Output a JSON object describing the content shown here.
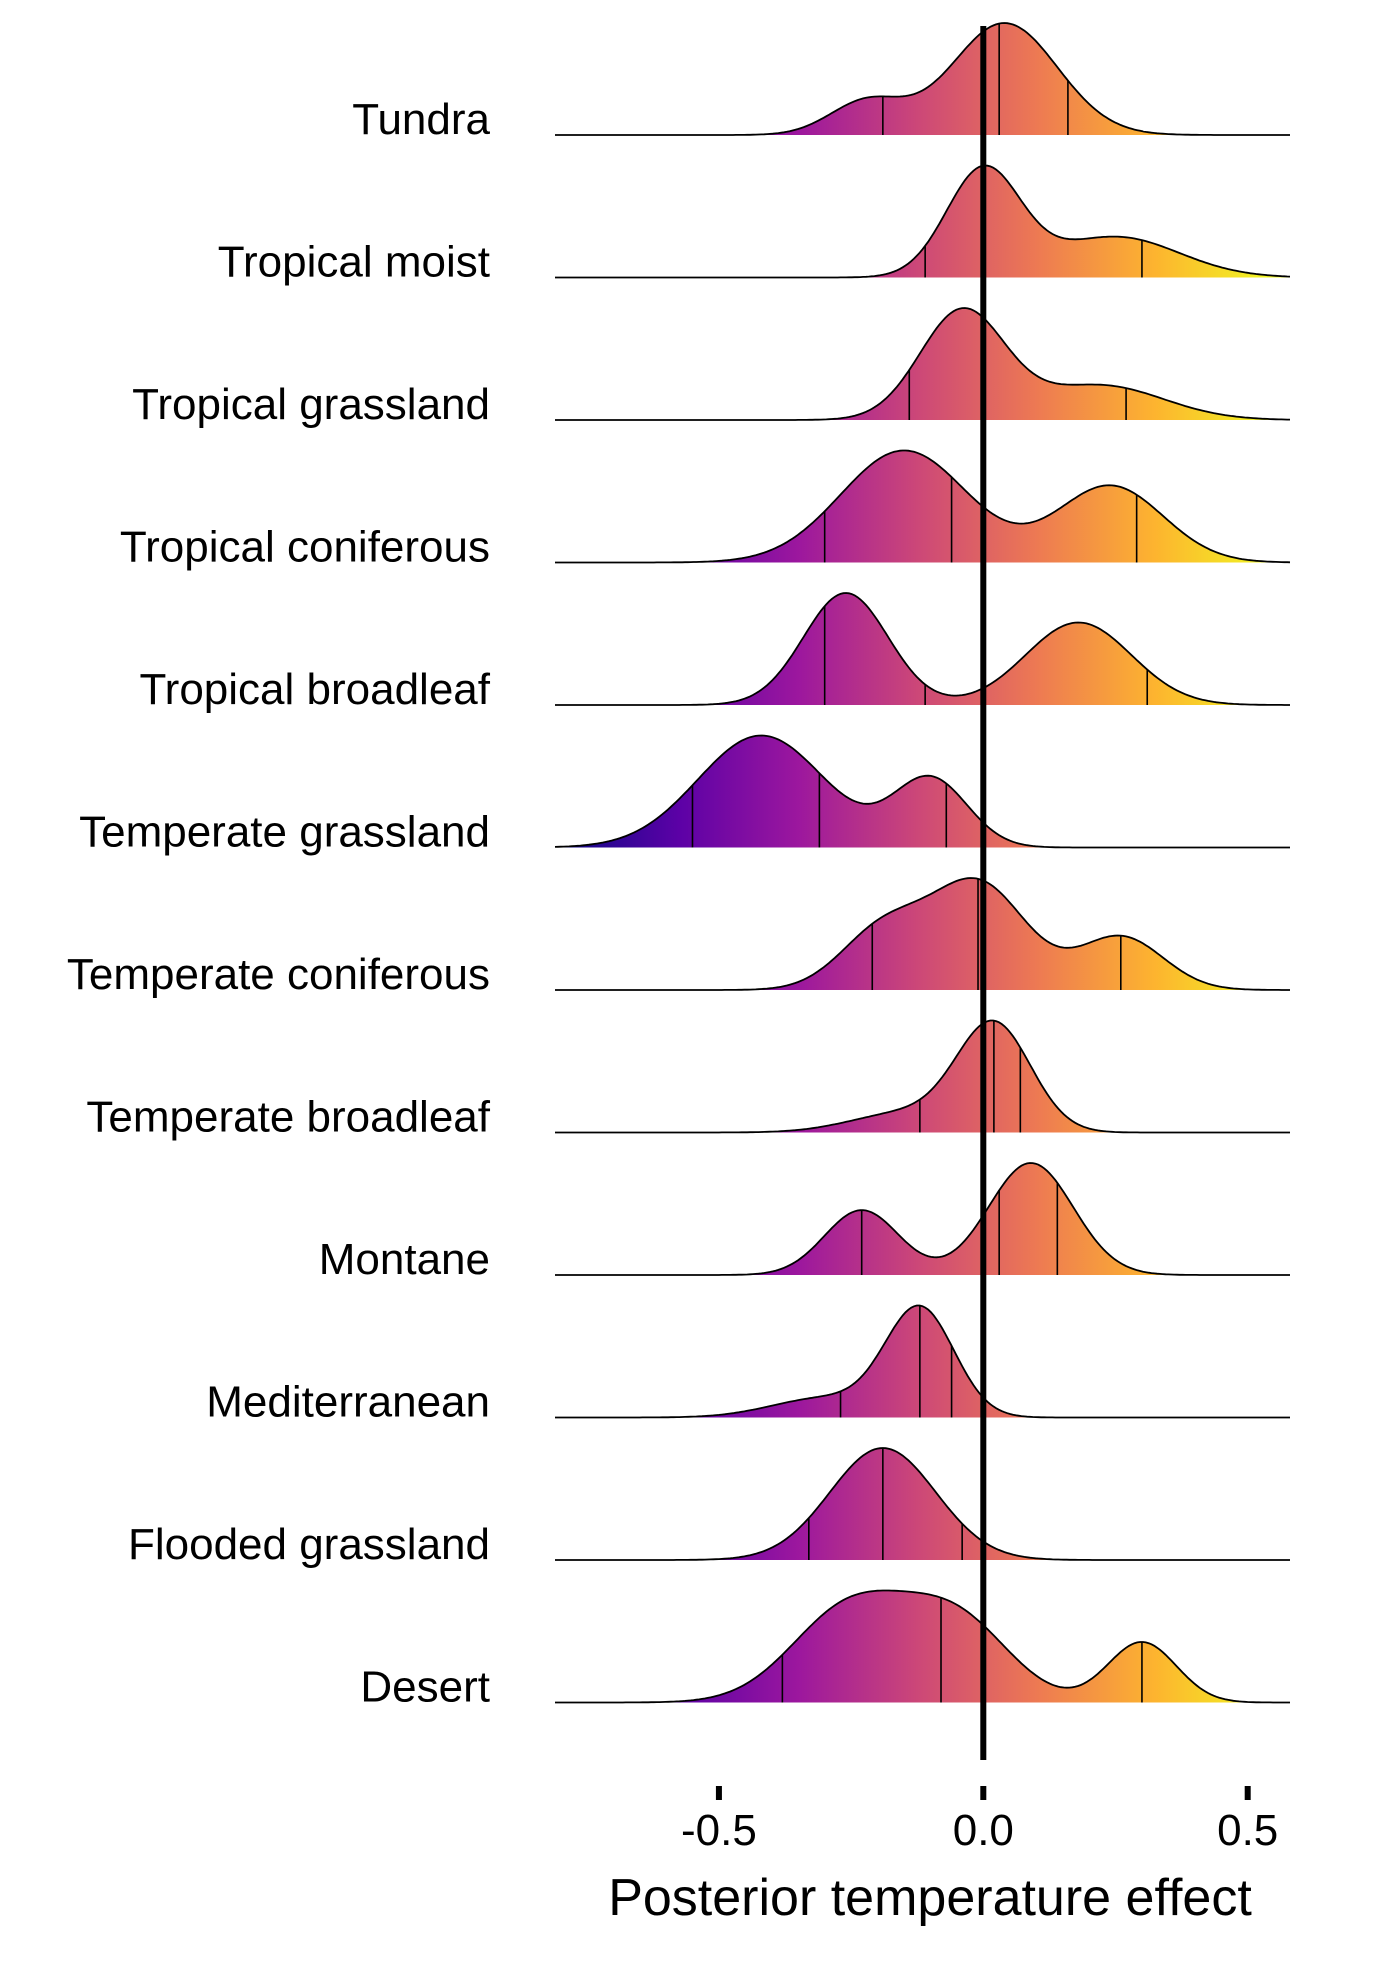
{
  "chart_data": {
    "type": "ridgeline",
    "xlabel": "Posterior temperature effect",
    "xticks": [
      -0.5,
      0.0,
      0.5
    ],
    "xtick_labels": [
      "-0.5",
      "0.0",
      "0.5"
    ],
    "xlim": [
      -0.81,
      0.58
    ],
    "reference_line": 0.0,
    "colormap": [
      "#0d0887",
      "#5c01a6",
      "#9c179e",
      "#cc4778",
      "#ed7953",
      "#fdb42f",
      "#f0f921"
    ],
    "color_range": [
      -0.8,
      0.55
    ],
    "series": [
      {
        "name": "Tundra",
        "quantiles": [
          -0.19,
          0.03,
          0.16
        ],
        "components": [
          {
            "mu": -0.22,
            "sigma": 0.07,
            "w": 0.3
          },
          {
            "mu": 0.04,
            "sigma": 0.1,
            "w": 1.0
          }
        ]
      },
      {
        "name": "Tropical moist",
        "quantiles": [
          -0.11,
          0.0,
          0.3
        ],
        "components": [
          {
            "mu": 0.0,
            "sigma": 0.07,
            "w": 1.0
          },
          {
            "mu": 0.25,
            "sigma": 0.12,
            "w": 0.38
          }
        ]
      },
      {
        "name": "Tropical grassland",
        "quantiles": [
          -0.14,
          0.0,
          0.27
        ],
        "components": [
          {
            "mu": -0.04,
            "sigma": 0.08,
            "w": 1.0
          },
          {
            "mu": 0.22,
            "sigma": 0.12,
            "w": 0.32
          }
        ]
      },
      {
        "name": "Tropical coniferous",
        "quantiles": [
          -0.3,
          -0.06,
          0.29
        ],
        "components": [
          {
            "mu": -0.15,
            "sigma": 0.12,
            "w": 0.95
          },
          {
            "mu": 0.24,
            "sigma": 0.1,
            "w": 0.65
          }
        ]
      },
      {
        "name": "Tropical broadleaf",
        "quantiles": [
          -0.3,
          -0.11,
          0.31
        ],
        "components": [
          {
            "mu": -0.26,
            "sigma": 0.08,
            "w": 0.95
          },
          {
            "mu": 0.18,
            "sigma": 0.1,
            "w": 0.7
          }
        ]
      },
      {
        "name": "Temperate grassland",
        "quantiles": [
          -0.55,
          -0.31,
          -0.07
        ],
        "components": [
          {
            "mu": -0.42,
            "sigma": 0.12,
            "w": 0.9
          },
          {
            "mu": -0.1,
            "sigma": 0.07,
            "w": 0.55
          }
        ]
      },
      {
        "name": "Temperate coniferous",
        "quantiles": [
          -0.21,
          -0.01,
          0.26
        ],
        "components": [
          {
            "mu": -0.19,
            "sigma": 0.08,
            "w": 0.5
          },
          {
            "mu": -0.01,
            "sigma": 0.09,
            "w": 0.9
          },
          {
            "mu": 0.26,
            "sigma": 0.08,
            "w": 0.45
          }
        ]
      },
      {
        "name": "Temperate broadleaf",
        "quantiles": [
          -0.12,
          0.02,
          0.07
        ],
        "components": [
          {
            "mu": 0.02,
            "sigma": 0.07,
            "w": 1.0
          },
          {
            "mu": -0.15,
            "sigma": 0.1,
            "w": 0.18
          }
        ]
      },
      {
        "name": "Montane",
        "quantiles": [
          -0.23,
          0.03,
          0.14
        ],
        "components": [
          {
            "mu": -0.23,
            "sigma": 0.07,
            "w": 0.55
          },
          {
            "mu": 0.09,
            "sigma": 0.08,
            "w": 0.95
          }
        ]
      },
      {
        "name": "Mediterranean",
        "quantiles": [
          -0.27,
          -0.12,
          -0.06
        ],
        "components": [
          {
            "mu": -0.12,
            "sigma": 0.065,
            "w": 1.0
          },
          {
            "mu": -0.3,
            "sigma": 0.1,
            "w": 0.18
          }
        ]
      },
      {
        "name": "Flooded grassland",
        "quantiles": [
          -0.33,
          -0.19,
          -0.04
        ],
        "components": [
          {
            "mu": -0.19,
            "sigma": 0.1,
            "w": 1.0
          }
        ]
      },
      {
        "name": "Desert",
        "quantiles": [
          -0.38,
          -0.08,
          0.3
        ],
        "components": [
          {
            "mu": -0.25,
            "sigma": 0.11,
            "w": 0.6
          },
          {
            "mu": -0.05,
            "sigma": 0.1,
            "w": 0.5
          },
          {
            "mu": 0.3,
            "sigma": 0.065,
            "w": 0.38
          }
        ]
      }
    ]
  }
}
